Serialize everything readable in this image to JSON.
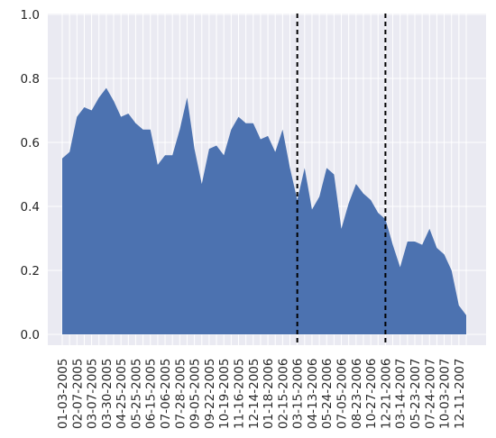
{
  "chart_data": {
    "type": "area",
    "title": "",
    "xlabel": "",
    "ylabel": "",
    "ylim": [
      0.0,
      1.0
    ],
    "yticks": [
      "0.0",
      "0.2",
      "0.4",
      "0.6",
      "0.8",
      "1.0"
    ],
    "grid": true,
    "legend": "none",
    "colors": {
      "area": "#4c72b0",
      "background": "#eaeaf2",
      "grid": "#ffffff",
      "marker_line": "#000000"
    },
    "x_labels": [
      "01-03-2005",
      "02-07-2005",
      "03-07-2005",
      "03-30-2005",
      "04-25-2005",
      "05-25-2005",
      "06-15-2005",
      "07-06-2005",
      "07-28-2005",
      "09-05-2005",
      "09-22-2005",
      "10-19-2005",
      "11-16-2005",
      "12-14-2005",
      "01-18-2006",
      "02-15-2006",
      "03-15-2006",
      "04-13-2006",
      "05-24-2006",
      "07-05-2006",
      "08-23-2006",
      "10-27-2006",
      "12-21-2006",
      "03-14-2007",
      "05-23-2007",
      "07-24-2007",
      "10-03-2007",
      "12-11-2007"
    ],
    "values": [
      0.55,
      0.57,
      0.68,
      0.71,
      0.7,
      0.74,
      0.77,
      0.73,
      0.68,
      0.69,
      0.66,
      0.64,
      0.64,
      0.53,
      0.56,
      0.56,
      0.64,
      0.74,
      0.58,
      0.47,
      0.58,
      0.59,
      0.56,
      0.64,
      0.68,
      0.66,
      0.66,
      0.61,
      0.62,
      0.57,
      0.64,
      0.52,
      0.42,
      0.52,
      0.39,
      0.43,
      0.52,
      0.5,
      0.33,
      0.41,
      0.47,
      0.44,
      0.42,
      0.38,
      0.36,
      0.28,
      0.21,
      0.29,
      0.29,
      0.28,
      0.33,
      0.27,
      0.25,
      0.2,
      0.09,
      0.06
    ],
    "vlines": [
      {
        "label": "03-15-2006",
        "style": "dashed"
      },
      {
        "label": "12-21-2006",
        "style": "dashed"
      }
    ]
  }
}
